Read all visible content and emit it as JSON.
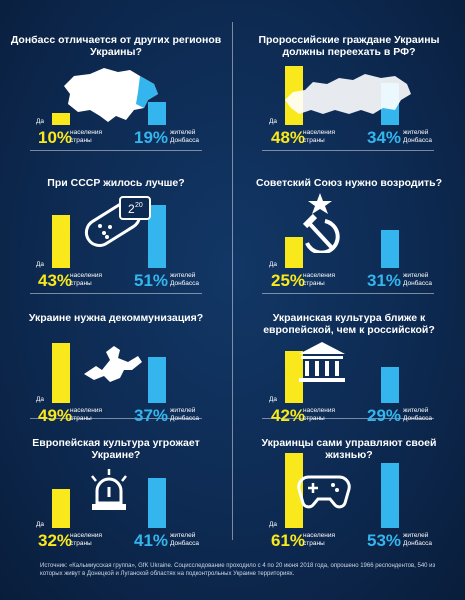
{
  "legend": {
    "yes": "Да",
    "country": "населения страны",
    "donbass": "жителей Донбасса"
  },
  "colors": {
    "country": "#f8e81c",
    "donbass": "#34b5ee"
  },
  "chart_data": [
    {
      "type": "bar",
      "title": "Донбасс отличается от других регионов Украины?",
      "categories": [
        "населения страны",
        "жителей Донбасса"
      ],
      "values": [
        10,
        19
      ],
      "labels": [
        "10%",
        "19%"
      ],
      "icon": "ukraine-map-icon"
    },
    {
      "type": "bar",
      "title": "Пророссийские граждане Украины должны переехать в РФ?",
      "categories": [
        "населения страны",
        "жителей Донбасса"
      ],
      "values": [
        48,
        34
      ],
      "labels": [
        "48%",
        "34%"
      ],
      "icon": "russia-map-icon"
    },
    {
      "type": "bar",
      "title": "При СССР жилось лучше?",
      "categories": [
        "населения страны",
        "жителей Донбасса"
      ],
      "values": [
        43,
        51
      ],
      "labels": [
        "43%",
        "51%"
      ],
      "icon": "sausage-price-icon",
      "icon_text": "2",
      "icon_text_sup": "20"
    },
    {
      "type": "bar",
      "title": "Советский Союз нужно возродить?",
      "categories": [
        "населения страны",
        "жителей Донбасса"
      ],
      "values": [
        25,
        31
      ],
      "labels": [
        "25%",
        "31%"
      ],
      "icon": "hammer-sickle-star-icon"
    },
    {
      "type": "bar",
      "title": "Украине нужна декоммунизация?",
      "categories": [
        "населения страны",
        "жителей Донбасса"
      ],
      "values": [
        49,
        37
      ],
      "labels": [
        "49%",
        "37%"
      ],
      "icon": "fallen-statue-icon"
    },
    {
      "type": "bar",
      "title": "Украинская культура ближе к европейской, чем к российской?",
      "categories": [
        "населения страны",
        "жителей Донбасса"
      ],
      "values": [
        42,
        29
      ],
      "labels": [
        "42%",
        "29%"
      ],
      "icon": "museum-icon"
    },
    {
      "type": "bar",
      "title": "Европейская культура угрожает Украине?",
      "categories": [
        "населения страны",
        "жителей Донбасса"
      ],
      "values": [
        32,
        41
      ],
      "labels": [
        "32%",
        "41%"
      ],
      "icon": "alarm-siren-icon"
    },
    {
      "type": "bar",
      "title": "Украинцы сами управляют своей жизнью?",
      "categories": [
        "населения страны",
        "жителей Донбасса"
      ],
      "values": [
        61,
        53
      ],
      "labels": [
        "61%",
        "53%"
      ],
      "icon": "gamepad-icon"
    }
  ],
  "source": "Источник: «Кальмиусская группа», GfK Ukraine. Социсследование проходило с 4 по 20 июня 2018 года, опрошено 1966 респондентов, 540 из которых живут в Донецкой и Луганской областях на подконтрольных Украине территориях."
}
